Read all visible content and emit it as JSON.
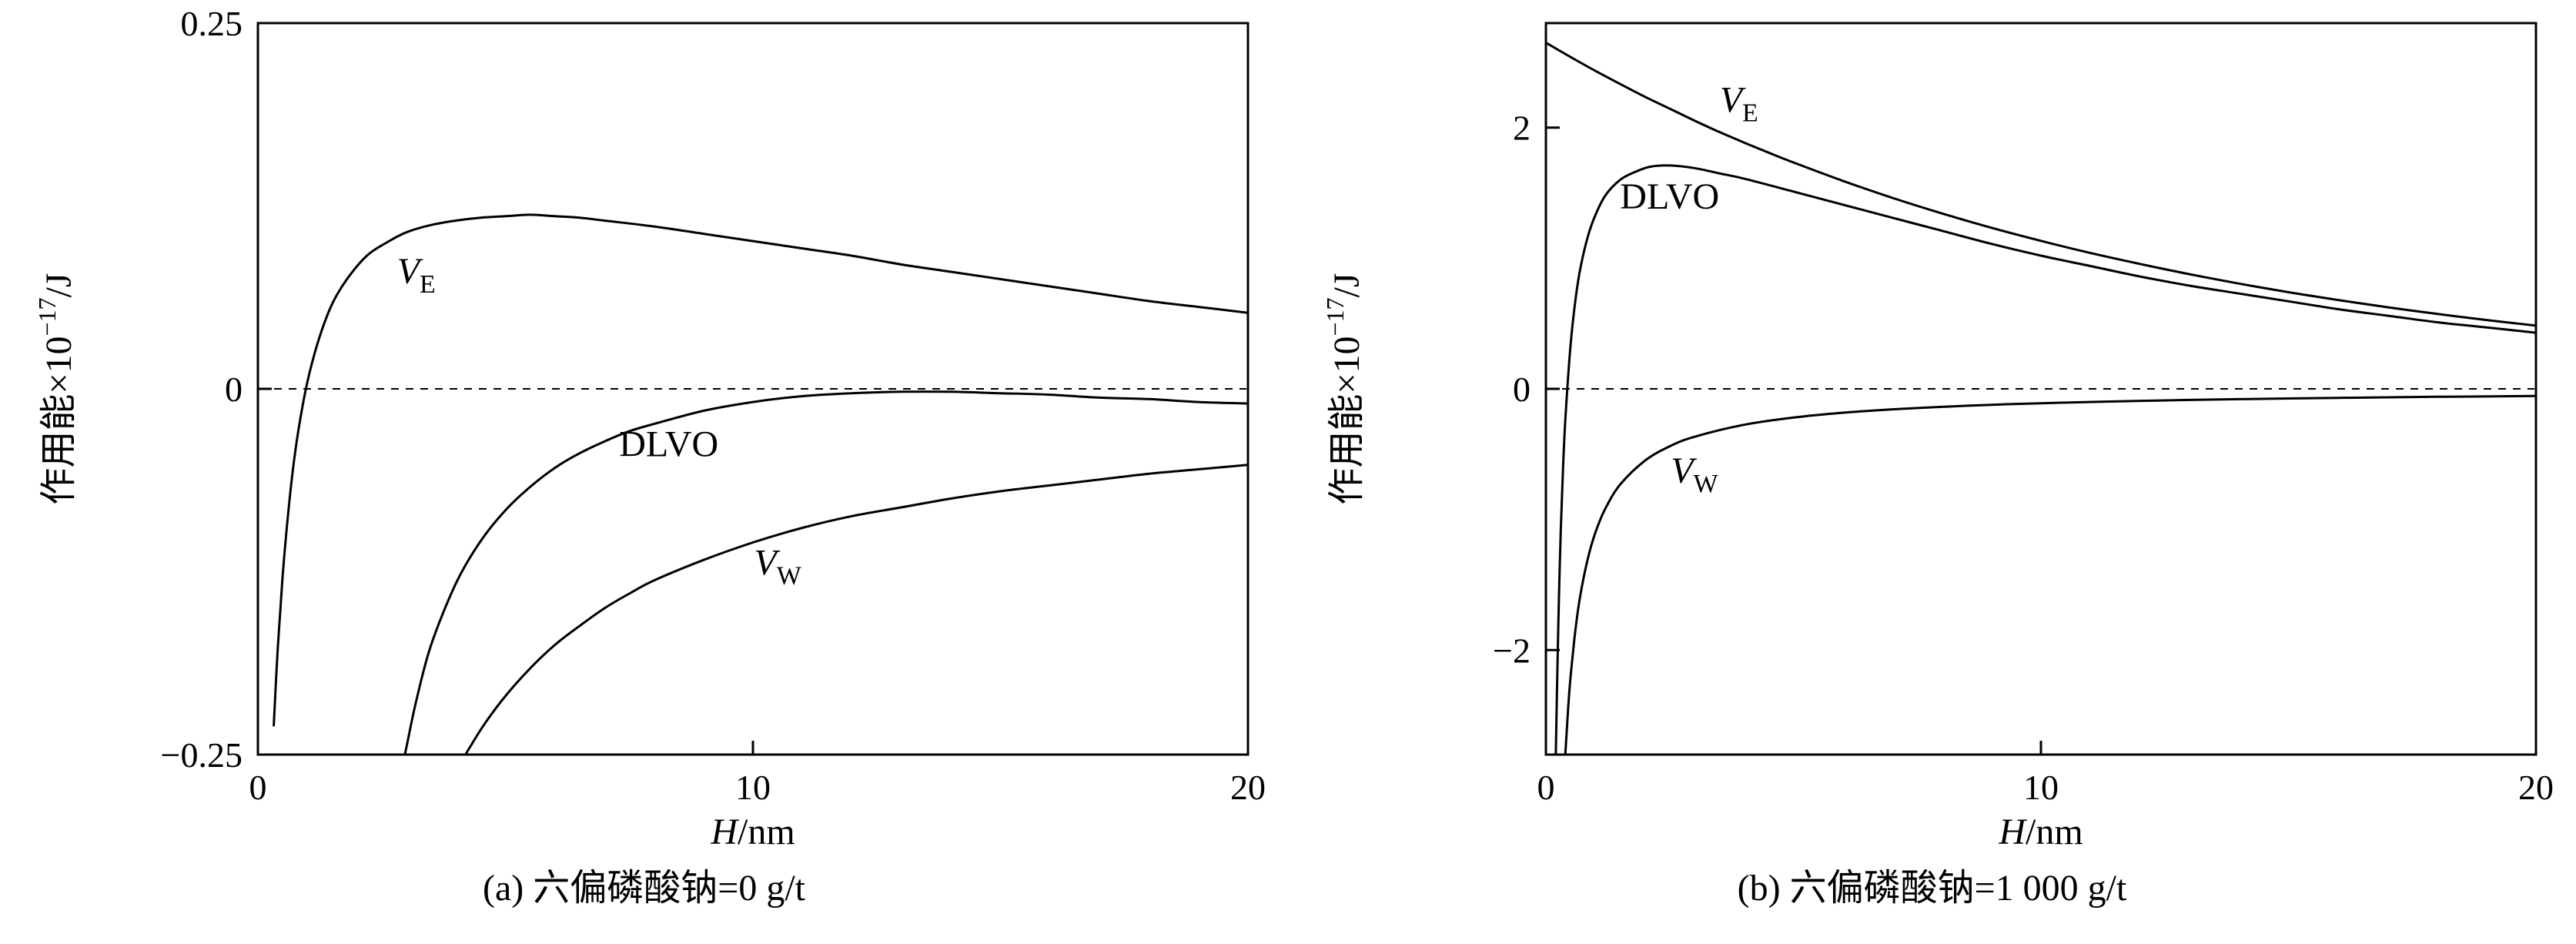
{
  "page": {
    "background": "#ffffff",
    "line_color": "#000000"
  },
  "chart_data": [
    {
      "type": "line",
      "panel": "a",
      "title": "(a) 六偏磷酸钠=0 g/t",
      "xlabel": "H/nm",
      "xlabel_parts": {
        "italic": "H",
        "normal": "/nm"
      },
      "ylabel": "作用能×10⁻¹⁷/J",
      "ylabel_parts": {
        "prefix": "作用能×10",
        "sup": "−17",
        "suffix": "/J"
      },
      "xlim": [
        0,
        20
      ],
      "ylim": [
        -0.25,
        0.25
      ],
      "xticks": [
        0,
        10,
        20
      ],
      "xtick_labels": [
        "0",
        "10",
        "20"
      ],
      "yticks": [
        -0.25,
        0,
        0.25
      ],
      "ytick_labels": [
        "−0.25",
        "0",
        "0.25"
      ],
      "zero_line": {
        "y": 0,
        "style": "dashed"
      },
      "grid": false,
      "legend": "inline-curve-labels",
      "series": [
        {
          "name": "V_E",
          "label_main": "V",
          "label_sub": "E",
          "label_italic": true,
          "label_pos": [
            3.2,
            0.072
          ],
          "points": [
            [
              0.32,
              -0.23
            ],
            [
              0.4,
              -0.178
            ],
            [
              0.5,
              -0.128
            ],
            [
              0.62,
              -0.082
            ],
            [
              0.75,
              -0.044
            ],
            [
              0.9,
              -0.012
            ],
            [
              1.05,
              0.012
            ],
            [
              1.25,
              0.036
            ],
            [
              1.5,
              0.058
            ],
            [
              1.8,
              0.075
            ],
            [
              2.2,
              0.091
            ],
            [
              2.6,
              0.1
            ],
            [
              3.0,
              0.107
            ],
            [
              3.5,
              0.112
            ],
            [
              4.0,
              0.115
            ],
            [
              4.5,
              0.117
            ],
            [
              5.0,
              0.118
            ],
            [
              5.5,
              0.119
            ],
            [
              6.0,
              0.118
            ],
            [
              6.5,
              0.117
            ],
            [
              7.0,
              0.115
            ],
            [
              8.0,
              0.111
            ],
            [
              9.0,
              0.106
            ],
            [
              10,
              0.101
            ],
            [
              11,
              0.096
            ],
            [
              12,
              0.091
            ],
            [
              13,
              0.085
            ],
            [
              14,
              0.08
            ],
            [
              15,
              0.075
            ],
            [
              16,
              0.07
            ],
            [
              17,
              0.065
            ],
            [
              18,
              0.06
            ],
            [
              19,
              0.056
            ],
            [
              20,
              0.052
            ]
          ]
        },
        {
          "name": "DLVO",
          "label_main": "DLVO",
          "label_sub": "",
          "label_italic": false,
          "label_pos": [
            8.3,
            -0.046
          ],
          "points": [
            [
              2.85,
              -0.27
            ],
            [
              3.0,
              -0.245
            ],
            [
              3.2,
              -0.213
            ],
            [
              3.5,
              -0.175
            ],
            [
              4.0,
              -0.133
            ],
            [
              4.5,
              -0.104
            ],
            [
              5.0,
              -0.083
            ],
            [
              5.5,
              -0.067
            ],
            [
              6.0,
              -0.054
            ],
            [
              6.5,
              -0.044
            ],
            [
              7.0,
              -0.036
            ],
            [
              7.5,
              -0.029
            ],
            [
              8.0,
              -0.024
            ],
            [
              9.0,
              -0.015
            ],
            [
              10,
              -0.009
            ],
            [
              11,
              -0.005
            ],
            [
              12,
              -0.003
            ],
            [
              13,
              -0.002
            ],
            [
              14,
              -0.002
            ],
            [
              15,
              -0.003
            ],
            [
              16,
              -0.004
            ],
            [
              17,
              -0.006
            ],
            [
              18,
              -0.007
            ],
            [
              19,
              -0.009
            ],
            [
              20,
              -0.01
            ]
          ]
        },
        {
          "name": "V_W",
          "label_main": "V",
          "label_sub": "W",
          "label_italic": true,
          "label_pos": [
            10.5,
            -0.127
          ],
          "points": [
            [
              3.95,
              -0.27
            ],
            [
              4.1,
              -0.256
            ],
            [
              4.3,
              -0.244
            ],
            [
              4.6,
              -0.228
            ],
            [
              5.0,
              -0.21
            ],
            [
              5.5,
              -0.191
            ],
            [
              6.0,
              -0.175
            ],
            [
              6.5,
              -0.162
            ],
            [
              7.0,
              -0.15
            ],
            [
              7.5,
              -0.14
            ],
            [
              8.0,
              -0.131
            ],
            [
              9.0,
              -0.117
            ],
            [
              10,
              -0.105
            ],
            [
              11,
              -0.095
            ],
            [
              12,
              -0.087
            ],
            [
              13,
              -0.081
            ],
            [
              14,
              -0.075
            ],
            [
              15,
              -0.07
            ],
            [
              16,
              -0.066
            ],
            [
              17,
              -0.062
            ],
            [
              18,
              -0.058
            ],
            [
              19,
              -0.055
            ],
            [
              20,
              -0.052
            ]
          ]
        }
      ]
    },
    {
      "type": "line",
      "panel": "b",
      "title": "(b) 六偏磷酸钠=1 000 g/t",
      "xlabel": "H/nm",
      "xlabel_parts": {
        "italic": "H",
        "normal": "/nm"
      },
      "ylabel": "作用能×10⁻¹⁷/J",
      "ylabel_parts": {
        "prefix": "作用能×10",
        "sup": "−17",
        "suffix": "/J"
      },
      "xlim": [
        0,
        20
      ],
      "ylim": [
        -2.8,
        2.8
      ],
      "xticks": [
        0,
        10,
        20
      ],
      "xtick_labels": [
        "0",
        "10",
        "20"
      ],
      "yticks": [
        -2,
        0,
        2
      ],
      "ytick_labels": [
        "−2",
        "0",
        "2"
      ],
      "zero_line": {
        "y": 0,
        "style": "dashed"
      },
      "grid": false,
      "legend": "inline-curve-labels",
      "series": [
        {
          "name": "V_E",
          "label_main": "V",
          "label_sub": "E",
          "label_italic": true,
          "label_pos": [
            3.9,
            2.12
          ],
          "points": [
            [
              0,
              2.65
            ],
            [
              0.5,
              2.54
            ],
            [
              1.0,
              2.434
            ],
            [
              1.5,
              2.334
            ],
            [
              2.0,
              2.236
            ],
            [
              2.5,
              2.145
            ],
            [
              3.0,
              2.054
            ],
            [
              3.5,
              1.967
            ],
            [
              4.0,
              1.886
            ],
            [
              4.5,
              1.808
            ],
            [
              5.0,
              1.733
            ],
            [
              6.0,
              1.592
            ],
            [
              7.0,
              1.462
            ],
            [
              8.0,
              1.343
            ],
            [
              9.0,
              1.233
            ],
            [
              10,
              1.133
            ],
            [
              11,
              1.04
            ],
            [
              12,
              0.956
            ],
            [
              13,
              0.878
            ],
            [
              14,
              0.806
            ],
            [
              15,
              0.74
            ],
            [
              16,
              0.68
            ],
            [
              17,
              0.625
            ],
            [
              18,
              0.574
            ],
            [
              19,
              0.527
            ],
            [
              20,
              0.484
            ]
          ]
        },
        {
          "name": "DLVO",
          "label_main": "DLVO",
          "label_sub": "",
          "label_italic": false,
          "label_pos": [
            2.5,
            1.38
          ],
          "points": [
            [
              0.19,
              -3.0
            ],
            [
              0.22,
              -2.4
            ],
            [
              0.25,
              -1.81
            ],
            [
              0.3,
              -1.08
            ],
            [
              0.35,
              -0.57
            ],
            [
              0.4,
              -0.19
            ],
            [
              0.5,
              0.34
            ],
            [
              0.6,
              0.69
            ],
            [
              0.7,
              0.93
            ],
            [
              0.85,
              1.17
            ],
            [
              1.0,
              1.33
            ],
            [
              1.2,
              1.48
            ],
            [
              1.5,
              1.6
            ],
            [
              1.8,
              1.66
            ],
            [
              2.1,
              1.7
            ],
            [
              2.5,
              1.71
            ],
            [
              3.0,
              1.69
            ],
            [
              3.5,
              1.65
            ],
            [
              4.0,
              1.61
            ],
            [
              5.0,
              1.51
            ],
            [
              6.0,
              1.41
            ],
            [
              7.0,
              1.31
            ],
            [
              8.0,
              1.21
            ],
            [
              9.0,
              1.11
            ],
            [
              10,
              1.02
            ],
            [
              11,
              0.94
            ],
            [
              12,
              0.86
            ],
            [
              13,
              0.79
            ],
            [
              14,
              0.73
            ],
            [
              15,
              0.67
            ],
            [
              16,
              0.61
            ],
            [
              17,
              0.56
            ],
            [
              18,
              0.51
            ],
            [
              19,
              0.47
            ],
            [
              20,
              0.43
            ]
          ]
        },
        {
          "name": "V_W",
          "label_main": "V",
          "label_sub": "W",
          "label_italic": true,
          "label_pos": [
            3.0,
            -0.72
          ],
          "points": [
            [
              0.36,
              -3.0
            ],
            [
              0.4,
              -2.75
            ],
            [
              0.45,
              -2.444
            ],
            [
              0.5,
              -2.2
            ],
            [
              0.6,
              -1.833
            ],
            [
              0.7,
              -1.571
            ],
            [
              0.85,
              -1.294
            ],
            [
              1.0,
              -1.1
            ],
            [
              1.2,
              -0.917
            ],
            [
              1.5,
              -0.733
            ],
            [
              2.0,
              -0.55
            ],
            [
              2.5,
              -0.44
            ],
            [
              3.0,
              -0.367
            ],
            [
              4.0,
              -0.275
            ],
            [
              5.0,
              -0.22
            ],
            [
              6.0,
              -0.183
            ],
            [
              7.0,
              -0.157
            ],
            [
              8.0,
              -0.138
            ],
            [
              9.0,
              -0.122
            ],
            [
              10,
              -0.11
            ],
            [
              12,
              -0.092
            ],
            [
              14,
              -0.079
            ],
            [
              16,
              -0.069
            ],
            [
              18,
              -0.061
            ],
            [
              20,
              -0.055
            ]
          ]
        }
      ]
    }
  ]
}
